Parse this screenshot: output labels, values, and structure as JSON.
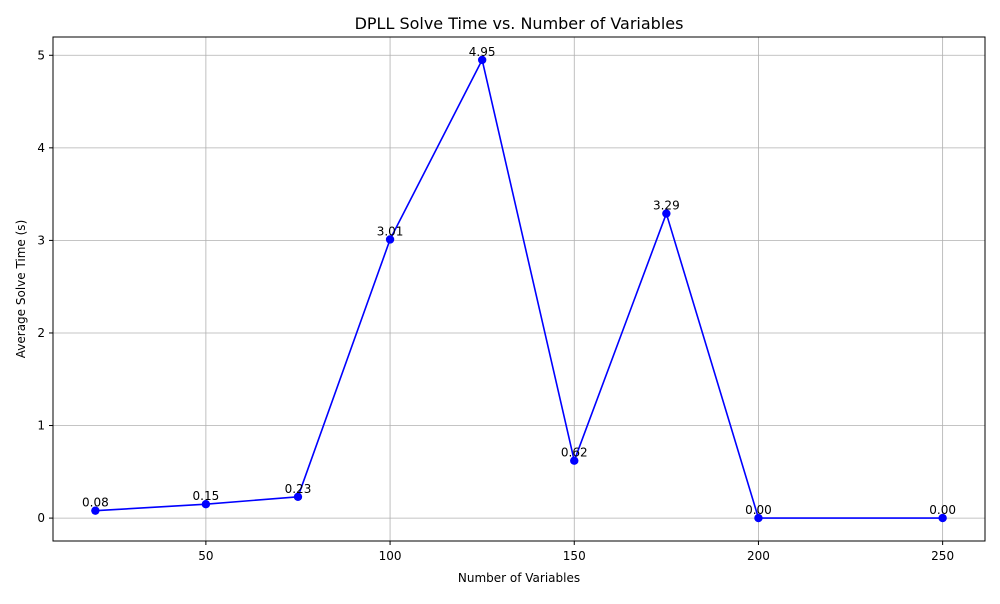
{
  "chart_data": {
    "type": "line",
    "title": "DPLL Solve Time vs. Number of Variables",
    "xlabel": "Number of Variables",
    "ylabel": "Average Solve Time (s)",
    "x": [
      20,
      50,
      75,
      100,
      125,
      150,
      175,
      200,
      250
    ],
    "series": [
      {
        "values": [
          0.08,
          0.15,
          0.23,
          3.01,
          4.95,
          0.62,
          3.29,
          0.0,
          0.0
        ],
        "data_labels": [
          "0.08",
          "0.15",
          "0.23",
          "3.01",
          "4.95",
          "0.62",
          "3.29",
          "0.00",
          "0.00"
        ],
        "color": "#0000ff",
        "marker": "circle"
      }
    ],
    "xlim": [
      8.5,
      261.5
    ],
    "ylim": [
      -0.2475,
      5.1975
    ],
    "xticks": [
      50,
      100,
      150,
      200,
      250
    ],
    "xtick_labels": [
      "50",
      "100",
      "150",
      "200",
      "250"
    ],
    "yticks": [
      0,
      1,
      2,
      3,
      4,
      5
    ],
    "ytick_labels": [
      "0",
      "1",
      "2",
      "3",
      "4",
      "5"
    ],
    "grid": true,
    "gridColor": "#b0b0b0",
    "legend": "none"
  }
}
